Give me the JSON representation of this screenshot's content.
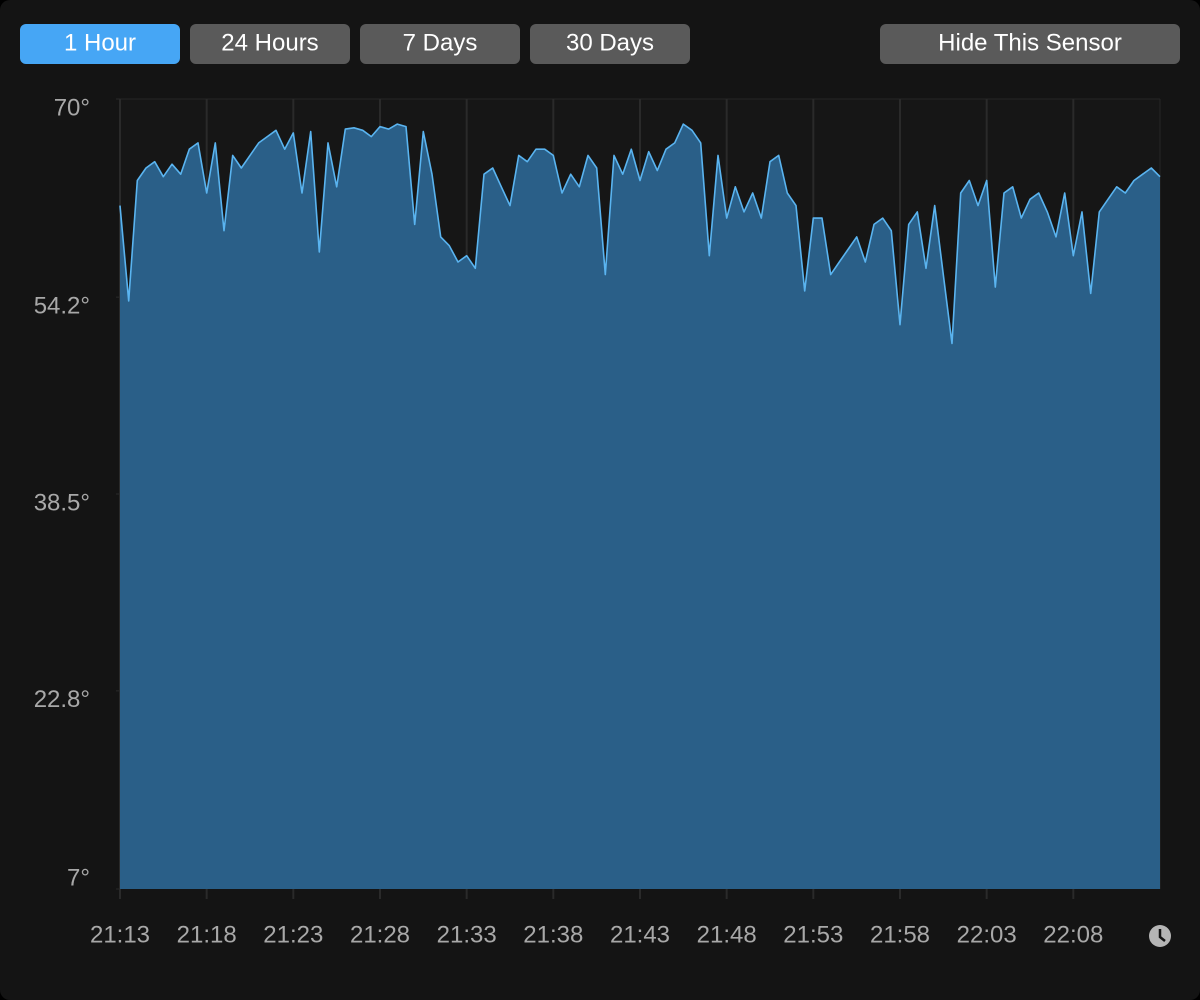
{
  "buttons": [
    {
      "label": "1 Hour",
      "active": true
    },
    {
      "label": "24 Hours",
      "active": false
    },
    {
      "label": "7 Days",
      "active": false
    },
    {
      "label": "30 Days",
      "active": false
    }
  ],
  "hide_button": {
    "label": "Hide This Sensor"
  },
  "chart_data": {
    "type": "area",
    "color": "#5ab4f0",
    "fill_color": "#2a5f88",
    "grid": true,
    "x": [
      1273,
      1273.5,
      1274,
      1274.5,
      1275,
      1275.5,
      1276,
      1276.5,
      1277,
      1277.5,
      1278,
      1278.5,
      1279,
      1279.5,
      1280,
      1280.5,
      1281,
      1281.5,
      1282,
      1282.5,
      1283,
      1283.5,
      1284,
      1284.5,
      1285,
      1285.5,
      1286,
      1286.5,
      1287,
      1287.5,
      1288,
      1288.5,
      1289,
      1289.5,
      1290,
      1290.5,
      1291,
      1291.5,
      1292,
      1292.5,
      1293,
      1293.5,
      1294,
      1294.5,
      1295,
      1295.5,
      1296,
      1296.5,
      1297,
      1297.5,
      1298,
      1298.5,
      1299,
      1299.5,
      1300,
      1300.5,
      1301,
      1301.5,
      1302,
      1302.5,
      1303,
      1303.5,
      1304,
      1304.5,
      1305,
      1305.5,
      1306,
      1306.5,
      1307,
      1307.5,
      1308,
      1308.5,
      1309,
      1309.5,
      1310,
      1310.5,
      1311,
      1311.5,
      1312,
      1312.5,
      1313,
      1313.5,
      1314,
      1314.5,
      1315,
      1315.5,
      1316,
      1316.5,
      1317,
      1317.5,
      1318,
      1318.5,
      1319,
      1319.5,
      1320,
      1320.5,
      1321,
      1321.5,
      1322,
      1322.5,
      1323,
      1323.5,
      1324,
      1324.5,
      1325,
      1325.5,
      1326,
      1326.5,
      1327,
      1327.5,
      1328,
      1328.5,
      1329,
      1329.5,
      1330,
      1330.5,
      1331,
      1331.5,
      1332,
      1332.5,
      1333
    ],
    "values": [
      61.5,
      53.9,
      63.5,
      64.5,
      65.0,
      63.8,
      64.8,
      64.0,
      66.0,
      66.5,
      62.5,
      66.5,
      59.5,
      65.5,
      64.5,
      65.5,
      66.5,
      67.0,
      67.5,
      66.0,
      67.3,
      62.5,
      67.4,
      57.8,
      66.5,
      63.0,
      67.6,
      67.7,
      67.5,
      67.0,
      67.8,
      67.6,
      68.0,
      67.8,
      60.0,
      67.4,
      64.0,
      59.0,
      58.3,
      57.0,
      57.5,
      56.5,
      64.0,
      64.5,
      63.0,
      61.5,
      65.5,
      65.0,
      66.0,
      66.0,
      65.5,
      62.5,
      64.0,
      63.0,
      65.5,
      64.5,
      56.0,
      65.5,
      64.0,
      66.0,
      63.5,
      65.8,
      64.3,
      66.0,
      66.5,
      68.0,
      67.5,
      66.5,
      57.5,
      65.5,
      60.5,
      63.0,
      61.0,
      62.5,
      60.5,
      65.0,
      65.5,
      62.5,
      61.5,
      54.7,
      60.5,
      60.5,
      56.0,
      57.0,
      58.0,
      59.0,
      57.0,
      60.0,
      60.5,
      59.5,
      52.0,
      60.0,
      61.0,
      56.5,
      61.5,
      56.0,
      50.5,
      62.5,
      63.5,
      61.5,
      63.5,
      55.0,
      62.5,
      63.0,
      60.5,
      62.0,
      62.5,
      61.0,
      59.0,
      62.5,
      57.5,
      61.0,
      54.5,
      61.0,
      62.0,
      63.0,
      62.5,
      63.5,
      64.0,
      64.5,
      63.8
    ],
    "xlim": [
      1273,
      1333
    ],
    "xticks": [
      {
        "value": 1273,
        "label": "21:13"
      },
      {
        "value": 1278,
        "label": "21:18"
      },
      {
        "value": 1283,
        "label": "21:23"
      },
      {
        "value": 1288,
        "label": "21:28"
      },
      {
        "value": 1293,
        "label": "21:33"
      },
      {
        "value": 1298,
        "label": "21:38"
      },
      {
        "value": 1303,
        "label": "21:43"
      },
      {
        "value": 1308,
        "label": "21:48"
      },
      {
        "value": 1313,
        "label": "21:53"
      },
      {
        "value": 1318,
        "label": "21:58"
      },
      {
        "value": 1323,
        "label": "22:03"
      },
      {
        "value": 1328,
        "label": "22:08"
      }
    ],
    "ylim": [
      7,
      70
    ],
    "yticks": [
      {
        "value": 70,
        "label": "70°"
      },
      {
        "value": 54.2,
        "label": "54.2°"
      },
      {
        "value": 38.5,
        "label": "38.5°"
      },
      {
        "value": 22.8,
        "label": "22.8°"
      },
      {
        "value": 7,
        "label": "7°"
      }
    ]
  }
}
